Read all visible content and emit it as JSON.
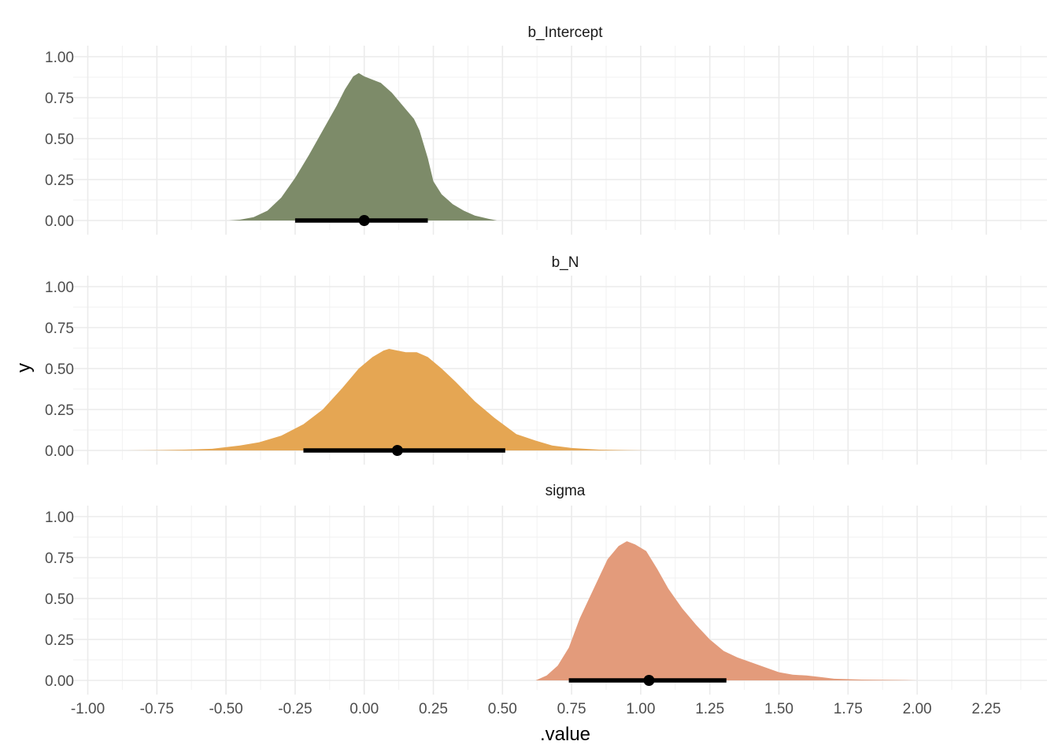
{
  "chart_data": {
    "type": "area",
    "xlabel": ".value",
    "ylabel": "y",
    "xlim": [
      -1.0,
      2.4
    ],
    "ylim": [
      0,
      1.0
    ],
    "x_ticks": [
      "-1.00",
      "-0.75",
      "-0.50",
      "-0.25",
      "0.00",
      "0.25",
      "0.50",
      "0.75",
      "1.00",
      "1.25",
      "1.50",
      "1.75",
      "2.00",
      "2.25"
    ],
    "y_ticks": [
      "0.00",
      "0.25",
      "0.50",
      "0.75",
      "1.00"
    ],
    "grid": true,
    "panels": [
      {
        "name": "b_Intercept",
        "color": "#7d8b69",
        "point": 0.0,
        "interval": [
          -0.25,
          0.23
        ],
        "density": [
          [
            -0.49,
            0.0
          ],
          [
            -0.45,
            0.005
          ],
          [
            -0.4,
            0.02
          ],
          [
            -0.35,
            0.06
          ],
          [
            -0.3,
            0.14
          ],
          [
            -0.25,
            0.26
          ],
          [
            -0.2,
            0.4
          ],
          [
            -0.15,
            0.55
          ],
          [
            -0.1,
            0.7
          ],
          [
            -0.07,
            0.8
          ],
          [
            -0.04,
            0.88
          ],
          [
            -0.02,
            0.9
          ],
          [
            0.0,
            0.88
          ],
          [
            0.03,
            0.86
          ],
          [
            0.06,
            0.84
          ],
          [
            0.1,
            0.78
          ],
          [
            0.15,
            0.68
          ],
          [
            0.18,
            0.62
          ],
          [
            0.2,
            0.55
          ],
          [
            0.23,
            0.38
          ],
          [
            0.25,
            0.24
          ],
          [
            0.28,
            0.16
          ],
          [
            0.32,
            0.1
          ],
          [
            0.36,
            0.06
          ],
          [
            0.4,
            0.03
          ],
          [
            0.45,
            0.01
          ],
          [
            0.48,
            0.0
          ]
        ]
      },
      {
        "name": "b_N",
        "color": "#e5a653",
        "point": 0.12,
        "interval": [
          -0.22,
          0.51
        ],
        "density": [
          [
            -0.86,
            0.0
          ],
          [
            -0.75,
            0.002
          ],
          [
            -0.65,
            0.005
          ],
          [
            -0.55,
            0.01
          ],
          [
            -0.45,
            0.03
          ],
          [
            -0.38,
            0.05
          ],
          [
            -0.3,
            0.09
          ],
          [
            -0.22,
            0.16
          ],
          [
            -0.15,
            0.25
          ],
          [
            -0.08,
            0.38
          ],
          [
            -0.02,
            0.5
          ],
          [
            0.03,
            0.57
          ],
          [
            0.07,
            0.61
          ],
          [
            0.09,
            0.62
          ],
          [
            0.12,
            0.61
          ],
          [
            0.15,
            0.6
          ],
          [
            0.19,
            0.6
          ],
          [
            0.23,
            0.57
          ],
          [
            0.28,
            0.5
          ],
          [
            0.33,
            0.42
          ],
          [
            0.4,
            0.3
          ],
          [
            0.47,
            0.2
          ],
          [
            0.55,
            0.1
          ],
          [
            0.62,
            0.06
          ],
          [
            0.68,
            0.03
          ],
          [
            0.75,
            0.015
          ],
          [
            0.85,
            0.005
          ],
          [
            0.95,
            0.002
          ],
          [
            1.03,
            0.0
          ]
        ]
      },
      {
        "name": "sigma",
        "color": "#e39b7b",
        "point": 1.03,
        "interval": [
          0.74,
          1.31
        ],
        "density": [
          [
            0.62,
            0.0
          ],
          [
            0.66,
            0.03
          ],
          [
            0.7,
            0.09
          ],
          [
            0.74,
            0.2
          ],
          [
            0.78,
            0.38
          ],
          [
            0.83,
            0.56
          ],
          [
            0.88,
            0.74
          ],
          [
            0.92,
            0.82
          ],
          [
            0.95,
            0.85
          ],
          [
            0.98,
            0.83
          ],
          [
            1.02,
            0.79
          ],
          [
            1.06,
            0.68
          ],
          [
            1.1,
            0.56
          ],
          [
            1.15,
            0.44
          ],
          [
            1.2,
            0.34
          ],
          [
            1.25,
            0.25
          ],
          [
            1.3,
            0.18
          ],
          [
            1.35,
            0.14
          ],
          [
            1.4,
            0.11
          ],
          [
            1.45,
            0.08
          ],
          [
            1.5,
            0.05
          ],
          [
            1.55,
            0.035
          ],
          [
            1.6,
            0.03
          ],
          [
            1.65,
            0.02
          ],
          [
            1.7,
            0.01
          ],
          [
            1.8,
            0.005
          ],
          [
            1.9,
            0.003
          ],
          [
            1.96,
            0.002
          ],
          [
            2.0,
            0.0
          ]
        ]
      }
    ]
  }
}
